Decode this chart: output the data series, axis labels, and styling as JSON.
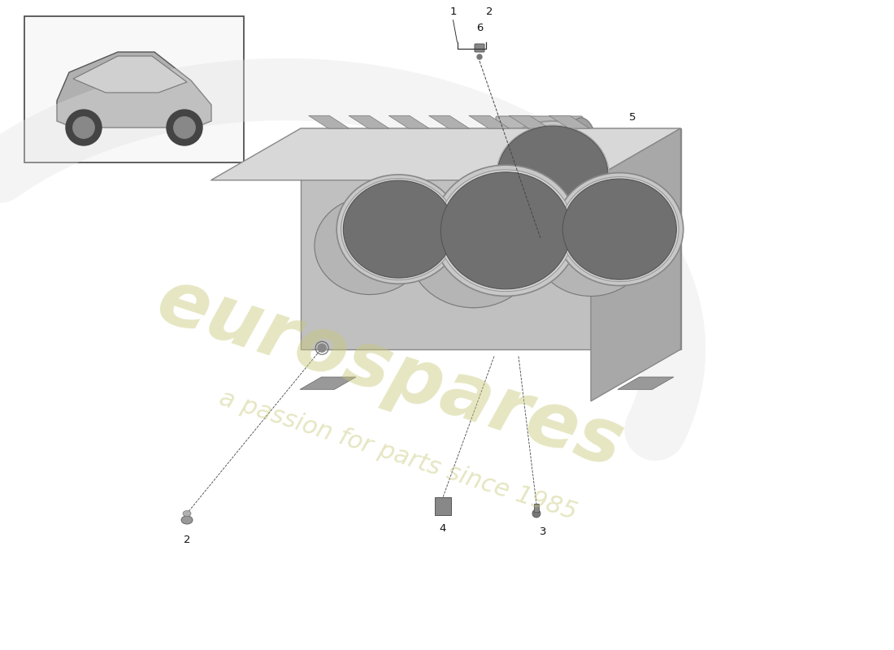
{
  "background_color": "#ffffff",
  "watermark_text1": "eurospares",
  "watermark_text2": "a passion for parts since 1985",
  "watermark_color_hex": "#c8c87a",
  "watermark_alpha": 0.45,
  "fig_w": 11.0,
  "fig_h": 8.0,
  "dpi": 100
}
